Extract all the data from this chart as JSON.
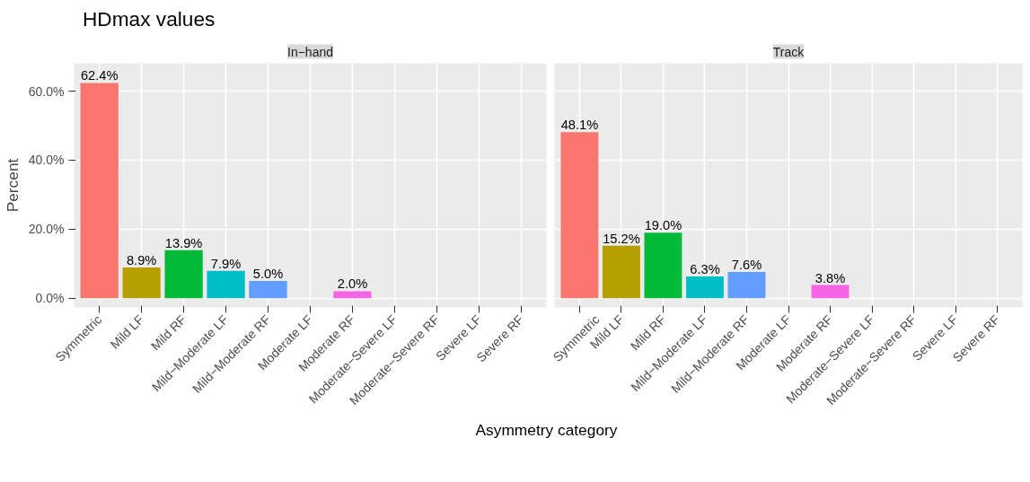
{
  "chart_data": [
    {
      "type": "bar",
      "title": "HDmax values",
      "subtitle": "In−hand",
      "xlabel": "Asymmetry category",
      "ylabel": "Percent",
      "categories": [
        "Symmetric",
        "Mild LF",
        "Mild RF",
        "Mild−Moderate LF",
        "Mild−Moderate RF",
        "Moderate LF",
        "Moderate RF",
        "Moderate−Severe LF",
        "Moderate−Severe RF",
        "Severe LF",
        "Severe RF"
      ],
      "values": [
        62.4,
        8.9,
        13.9,
        7.9,
        5.0,
        null,
        2.0,
        null,
        null,
        null,
        null
      ],
      "value_labels": [
        "62.4%",
        "8.9%",
        "13.9%",
        "7.9%",
        "5.0%",
        null,
        "2.0%",
        null,
        null,
        null,
        null
      ],
      "colors": [
        "#f8766d",
        "#b79f00",
        "#00ba38",
        "#00bfc4",
        "#619cff",
        "#999999",
        "#f564e3",
        "#999999",
        "#999999",
        "#999999",
        "#999999"
      ],
      "ylim": [
        -2.7,
        68.1
      ],
      "yticks": [
        {
          "value": 0,
          "label": "0.0%"
        },
        {
          "value": 20,
          "label": "20.0%"
        },
        {
          "value": 40,
          "label": "40.0%"
        },
        {
          "value": 60,
          "label": "60.0%"
        }
      ],
      "grid": true
    },
    {
      "type": "bar",
      "subtitle": "Track",
      "categories": [
        "Symmetric",
        "Mild LF",
        "Mild RF",
        "Mild−Moderate LF",
        "Mild−Moderate RF",
        "Moderate LF",
        "Moderate RF",
        "Moderate−Severe LF",
        "Moderate−Severe RF",
        "Severe LF",
        "Severe RF"
      ],
      "values": [
        48.1,
        15.2,
        19.0,
        6.3,
        7.6,
        null,
        3.8,
        null,
        null,
        null,
        null
      ],
      "value_labels": [
        "48.1%",
        "15.2%",
        "19.0%",
        "6.3%",
        "7.6%",
        null,
        "3.8%",
        null,
        null,
        null,
        null
      ],
      "colors": [
        "#f8766d",
        "#b79f00",
        "#00ba38",
        "#00bfc4",
        "#619cff",
        "#999999",
        "#f564e3",
        "#999999",
        "#999999",
        "#999999",
        "#999999"
      ],
      "ylim": [
        -2.7,
        68.1
      ],
      "yticks": [
        {
          "value": 0,
          "label": null
        },
        {
          "value": 20,
          "label": null
        },
        {
          "value": 40,
          "label": null
        },
        {
          "value": 60,
          "label": null
        }
      ],
      "grid": true,
      "tick_labels": "x"
    }
  ]
}
